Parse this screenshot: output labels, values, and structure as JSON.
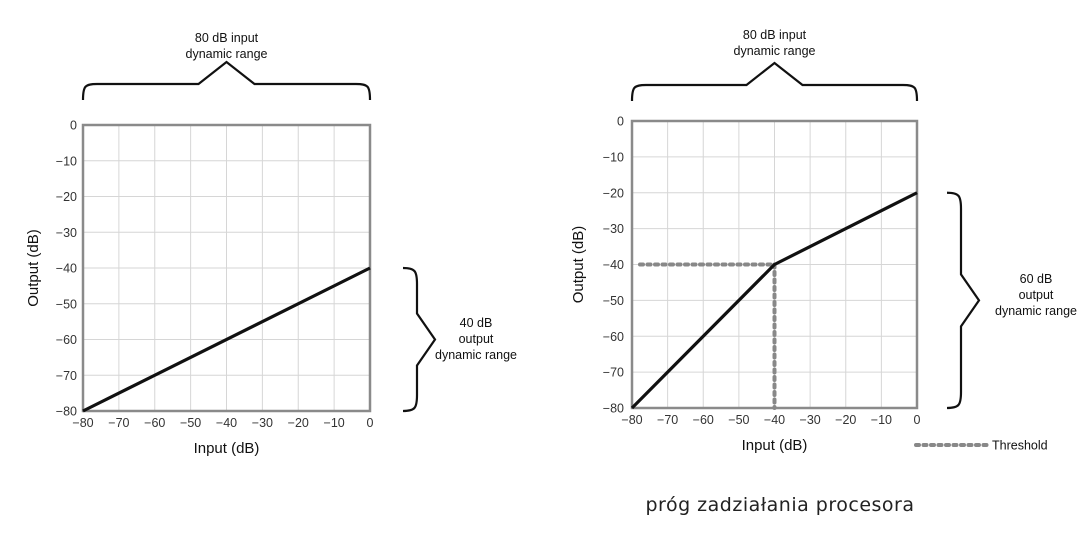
{
  "caption": "próg zadziałania procesora",
  "chart_data": [
    {
      "type": "line",
      "title": "",
      "xlabel": "Input (dB)",
      "ylabel": "Output (dB)",
      "xlim": [
        -80,
        0
      ],
      "ylim": [
        -80,
        0
      ],
      "xticks": [
        -80,
        -70,
        -60,
        -50,
        -40,
        -30,
        -20,
        -10,
        0
      ],
      "yticks": [
        0,
        -10,
        -20,
        -30,
        -40,
        -50,
        -60,
        -70,
        -80
      ],
      "xtick_labels": [
        "−80",
        "−70",
        "−60",
        "−50",
        "−40",
        "−30",
        "−20",
        "−10",
        "0"
      ],
      "ytick_labels": [
        "0",
        "−10",
        "−20",
        "−30",
        "−40",
        "−50",
        "−60",
        "−70",
        "−80"
      ],
      "grid": true,
      "series": [
        {
          "x": [
            -80,
            0
          ],
          "y": [
            -80,
            -40
          ],
          "color": "#111111"
        }
      ],
      "input_range_label": [
        "80 dB input",
        "dynamic range"
      ],
      "output_range_label": [
        "40 dB",
        "output",
        "dynamic range"
      ],
      "output_range": [
        -80,
        -40
      ]
    },
    {
      "type": "line",
      "title": "",
      "xlabel": "Input (dB)",
      "ylabel": "Output (dB)",
      "xlim": [
        -80,
        0
      ],
      "ylim": [
        -80,
        0
      ],
      "xticks": [
        -80,
        -70,
        -60,
        -50,
        -40,
        -30,
        -20,
        -10,
        0
      ],
      "yticks": [
        0,
        -10,
        -20,
        -30,
        -40,
        -50,
        -60,
        -70,
        -80
      ],
      "xtick_labels": [
        "−80",
        "−70",
        "−60",
        "−50",
        "−40",
        "−30",
        "−20",
        "−10",
        "0"
      ],
      "ytick_labels": [
        "0",
        "−10",
        "−20",
        "−30",
        "−40",
        "−50",
        "−60",
        "−70",
        "−80"
      ],
      "grid": true,
      "series": [
        {
          "x": [
            -80,
            -40,
            0
          ],
          "y": [
            -80,
            -40,
            -20
          ],
          "color": "#111111"
        }
      ],
      "threshold": {
        "x": -40,
        "y": -40,
        "color": "#888888",
        "style": "dotted"
      },
      "legend": {
        "label": "Threshold",
        "placement": "bottom-right"
      },
      "input_range_label": [
        "80 dB input",
        "dynamic range"
      ],
      "output_range_label": [
        "60 dB",
        "output",
        "dynamic range"
      ],
      "output_range": [
        -80,
        -20
      ]
    }
  ]
}
